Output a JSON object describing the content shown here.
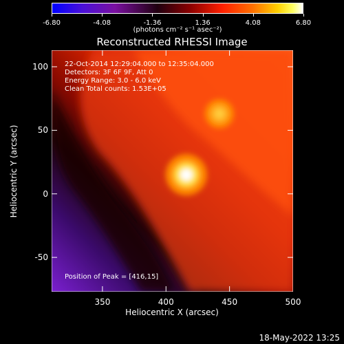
{
  "colorbar": {
    "ticks": [
      "-6.80",
      "-4.08",
      "-1.36",
      "1.36",
      "4.08",
      "6.80"
    ],
    "units": "(photons cm⁻² s⁻¹ asec⁻²)"
  },
  "annotations": {
    "time_range": "22-Oct-2014 12:29:04.000 to 12:35:04.000",
    "detectors": "Detectors: 3F 6F 9F, Att 0",
    "energy": "Energy Range: 3.0 - 6.0 keV",
    "clean": "Clean    Total counts: 1.53E+05",
    "peak": "Position of Peak = [416,15]"
  },
  "footer": "18-May-2022 13:25",
  "chart_data": {
    "type": "heatmap",
    "title": "Reconstructed RHESSI Image",
    "xlabel": "Heliocentric X (arcsec)",
    "ylabel": "Heliocentric Y (arcsec)",
    "xlim": [
      310,
      500
    ],
    "ylim": [
      -77,
      113
    ],
    "x_ticks": [
      350,
      400,
      450,
      500
    ],
    "y_ticks": [
      100,
      50,
      0,
      -50
    ],
    "clim": [
      -6.8,
      6.8
    ],
    "colormap": "rainbow/hot: blue-purple-black-red-orange-yellow-white",
    "sources": [
      {
        "x": 416,
        "y": 15,
        "peak": 6.8
      },
      {
        "x": 442,
        "y": 63,
        "peak": 4.8
      }
    ]
  }
}
